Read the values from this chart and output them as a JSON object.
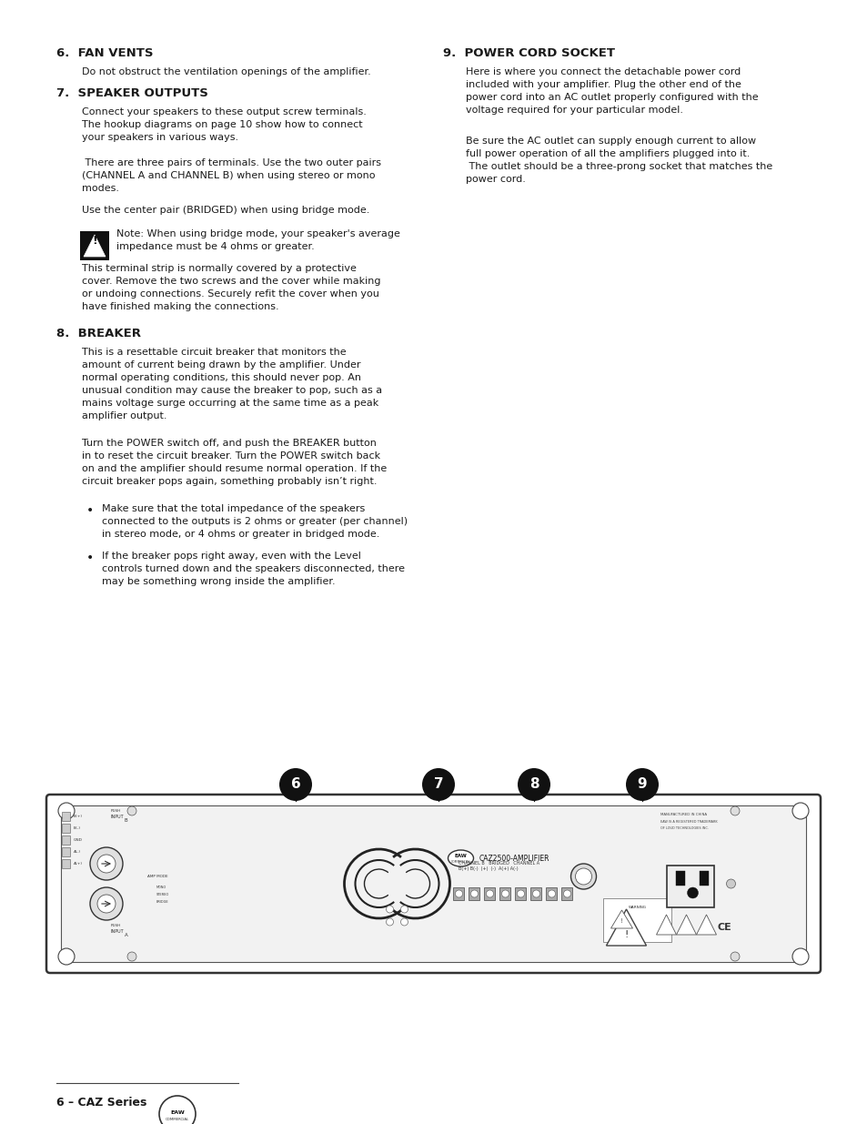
{
  "bg_color": "#ffffff",
  "text_color": "#1a1a1a",
  "page_width": 9.54,
  "page_height": 12.35,
  "section6_title": "6.  FAN VENTS",
  "section6_body": "Do not obstruct the ventilation openings of the amplifier.",
  "section7_title": "7.  SPEAKER OUTPUTS",
  "section7_body1": "Connect your speakers to these output screw terminals.\nThe hookup diagrams on page 10 show how to connect\nyour speakers in various ways.",
  "section7_body2": " There are three pairs of terminals. Use the two outer pairs\n(CHANNEL A and CHANNEL B) when using stereo or mono\nmodes.",
  "section7_body3": "Use the center pair (BRIDGED) when using bridge mode.",
  "section7_note": "Note: When using bridge mode, your speaker's average\nimpedance must be 4 ohms or greater.",
  "section7_body4": "This terminal strip is normally covered by a protective\ncover. Remove the two screws and the cover while making\nor undoing connections. Securely refit the cover when you\nhave finished making the connections.",
  "section8_title": "8.  BREAKER",
  "section8_body1": "This is a resettable circuit breaker that monitors the\namount of current being drawn by the amplifier. Under\nnormal operating conditions, this should never pop. An\nunusual condition may cause the breaker to pop, such as a\nmains voltage surge occurring at the same time as a peak\namplifier output.",
  "section8_body2": "Turn the POWER switch off, and push the BREAKER button\nin to reset the circuit breaker. Turn the POWER switch back\non and the amplifier should resume normal operation. If the\ncircuit breaker pops again, something probably isn’t right.",
  "section8_bullet1": "Make sure that the total impedance of the speakers\nconnected to the outputs is 2 ohms or greater (per channel)\nin stereo mode, or 4 ohms or greater in bridged mode.",
  "section8_bullet2": "If the breaker pops right away, even with the Level\ncontrols turned down and the speakers disconnected, there\nmay be something wrong inside the amplifier.",
  "section9_title": "9.  POWER CORD SOCKET",
  "section9_body1": "Here is where you connect the detachable power cord\nincluded with your amplifier. Plug the other end of the\npower cord into an AC outlet properly configured with the\nvoltage required for your particular model.",
  "section9_body2": "Be sure the AC outlet can supply enough current to allow\nfull power operation of all the amplifiers plugged into it.\n The outlet should be a three-prong socket that matches the\npower cord.",
  "footer_text": "6 – CAZ Series",
  "callout_numbers": [
    "6",
    "7",
    "8",
    "9"
  ]
}
